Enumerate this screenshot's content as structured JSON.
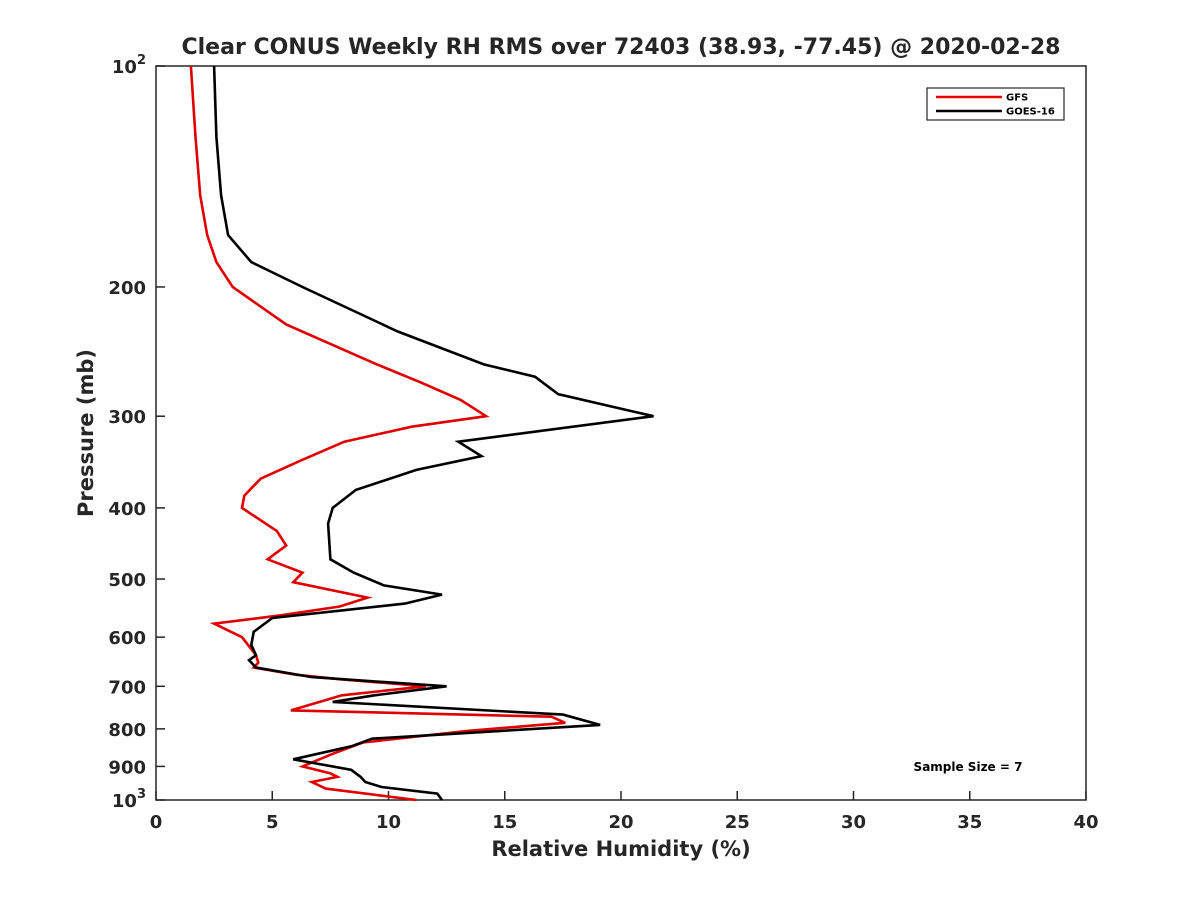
{
  "chart_data": {
    "type": "line",
    "title": "Clear CONUS Weekly RH RMS over 72403 (38.93, -77.45) @ 2020-02-28",
    "xlabel": "Relative Humidity (%)",
    "ylabel": "Pressure (mb)",
    "xlim": [
      0,
      40
    ],
    "ylim": [
      100,
      1000
    ],
    "yscale": "log",
    "y_reversed": true,
    "grid": false,
    "legend_position": "top-right",
    "x_ticks": [
      0,
      5,
      10,
      15,
      20,
      25,
      30,
      35,
      40
    ],
    "x_tick_labels": [
      "0",
      "5",
      "10",
      "15",
      "20",
      "25",
      "30",
      "35",
      "40"
    ],
    "y_ticks": [
      100,
      200,
      300,
      400,
      500,
      600,
      700,
      800,
      900,
      1000
    ],
    "y_tick_labels": [
      {
        "base": "10",
        "exp": "2"
      },
      {
        "base": "200",
        "exp": ""
      },
      {
        "base": "300",
        "exp": ""
      },
      {
        "base": "400",
        "exp": ""
      },
      {
        "base": "500",
        "exp": ""
      },
      {
        "base": "600",
        "exp": ""
      },
      {
        "base": "700",
        "exp": ""
      },
      {
        "base": "800",
        "exp": ""
      },
      {
        "base": "900",
        "exp": ""
      },
      {
        "base": "10",
        "exp": "3"
      }
    ],
    "annotations": [
      {
        "text": "Sample Size = 7"
      }
    ],
    "series": [
      {
        "name": "GFS",
        "color": "#e00000",
        "points": [
          [
            1.5,
            100
          ],
          [
            1.7,
            125
          ],
          [
            1.9,
            150
          ],
          [
            2.2,
            170
          ],
          [
            2.6,
            185
          ],
          [
            3.3,
            200
          ],
          [
            5.6,
            225
          ],
          [
            9.5,
            255
          ],
          [
            11.4,
            270
          ],
          [
            13.1,
            285
          ],
          [
            14.2,
            300
          ],
          [
            11.0,
            310
          ],
          [
            8.1,
            325
          ],
          [
            6.2,
            345
          ],
          [
            4.5,
            365
          ],
          [
            3.8,
            385
          ],
          [
            3.7,
            400
          ],
          [
            5.2,
            430
          ],
          [
            5.6,
            450
          ],
          [
            4.8,
            470
          ],
          [
            6.3,
            490
          ],
          [
            5.9,
            505
          ],
          [
            9.1,
            530
          ],
          [
            7.9,
            545
          ],
          [
            5.4,
            560
          ],
          [
            2.5,
            575
          ],
          [
            3.7,
            600
          ],
          [
            4.3,
            635
          ],
          [
            4.4,
            650
          ],
          [
            4.2,
            660
          ],
          [
            6.0,
            675
          ],
          [
            8.0,
            685
          ],
          [
            11.6,
            700
          ],
          [
            8.0,
            720
          ],
          [
            5.8,
            755
          ],
          [
            17.0,
            770
          ],
          [
            17.6,
            785
          ],
          [
            13.4,
            805
          ],
          [
            8.9,
            835
          ],
          [
            7.6,
            865
          ],
          [
            6.3,
            900
          ],
          [
            7.5,
            920
          ],
          [
            7.8,
            930
          ],
          [
            6.7,
            945
          ],
          [
            7.3,
            965
          ],
          [
            11.2,
            1000
          ]
        ]
      },
      {
        "name": "GOES-16",
        "color": "#000000",
        "points": [
          [
            2.5,
            100
          ],
          [
            2.6,
            125
          ],
          [
            2.8,
            150
          ],
          [
            3.1,
            170
          ],
          [
            4.1,
            185
          ],
          [
            6.3,
            200
          ],
          [
            10.4,
            230
          ],
          [
            14.1,
            255
          ],
          [
            16.3,
            265
          ],
          [
            17.3,
            280
          ],
          [
            21.4,
            300
          ],
          [
            13.0,
            325
          ],
          [
            14.0,
            340
          ],
          [
            11.2,
            355
          ],
          [
            8.6,
            378
          ],
          [
            7.6,
            400
          ],
          [
            7.4,
            420
          ],
          [
            7.5,
            470
          ],
          [
            8.5,
            490
          ],
          [
            9.8,
            510
          ],
          [
            12.3,
            525
          ],
          [
            10.7,
            540
          ],
          [
            5.0,
            565
          ],
          [
            4.2,
            590
          ],
          [
            4.1,
            615
          ],
          [
            4.3,
            635
          ],
          [
            4.0,
            645
          ],
          [
            4.3,
            660
          ],
          [
            6.7,
            680
          ],
          [
            12.5,
            700
          ],
          [
            9.4,
            720
          ],
          [
            7.6,
            735
          ],
          [
            17.5,
            765
          ],
          [
            19.1,
            790
          ],
          [
            9.3,
            825
          ],
          [
            8.4,
            845
          ],
          [
            5.9,
            880
          ],
          [
            8.4,
            910
          ],
          [
            8.8,
            930
          ],
          [
            9.0,
            945
          ],
          [
            9.7,
            960
          ],
          [
            12.1,
            980
          ],
          [
            12.3,
            1000
          ]
        ]
      }
    ]
  }
}
